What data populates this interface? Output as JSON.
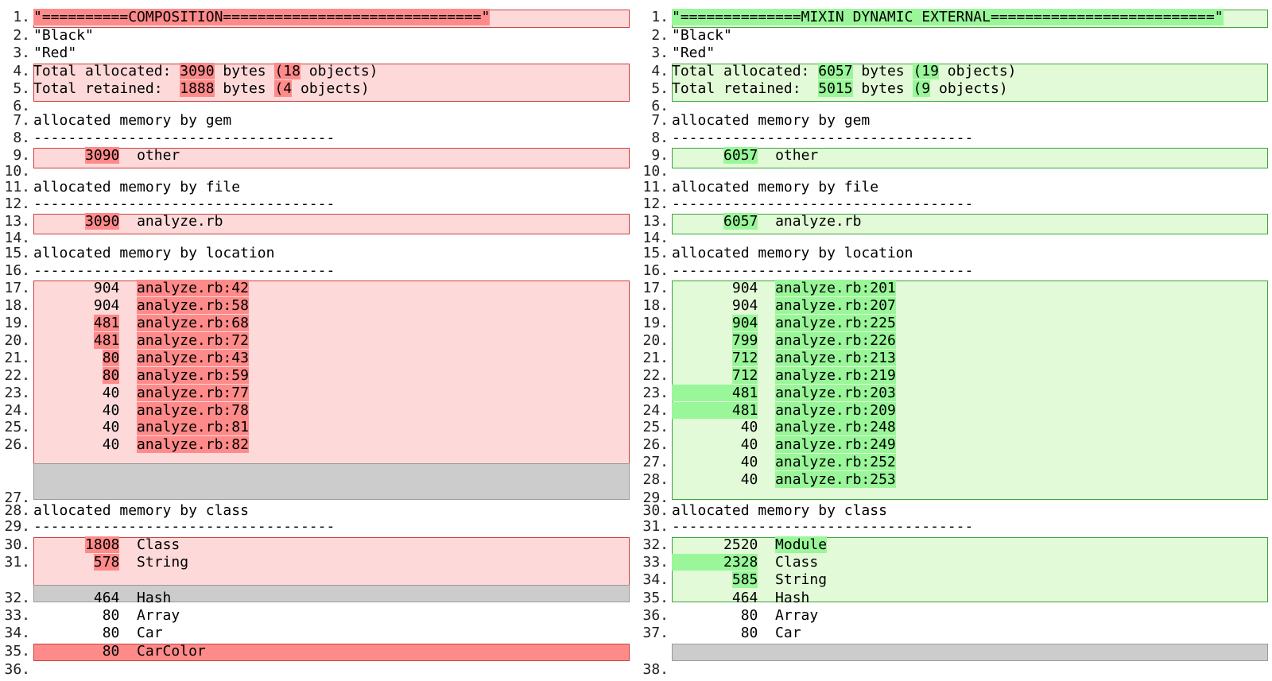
{
  "left": {
    "rows": [
      {
        "ln": "1.",
        "segs": [
          {
            "t": "\"==========COMPOSITION==============================\"",
            "h": 1
          }
        ]
      },
      {
        "ln": "2.",
        "segs": [
          {
            "t": "\"Black\""
          }
        ]
      },
      {
        "ln": "3.",
        "segs": [
          {
            "t": "\"Red\""
          }
        ]
      },
      {
        "ln": "4.",
        "segs": [
          {
            "t": "Total allocated: "
          },
          {
            "t": "3090",
            "h": 1
          },
          {
            "t": " bytes "
          },
          {
            "t": "(18",
            "h": 1
          },
          {
            "t": " objects)"
          }
        ]
      },
      {
        "ln": "5.",
        "segs": [
          {
            "t": "Total retained:  "
          },
          {
            "t": "1888",
            "h": 1
          },
          {
            "t": " bytes "
          },
          {
            "t": "(4",
            "h": 1
          },
          {
            "t": " objects)"
          }
        ]
      },
      {
        "ln": "6.",
        "segs": [
          {
            "t": ""
          }
        ]
      },
      {
        "ln": "7.",
        "segs": [
          {
            "t": "allocated memory by gem"
          }
        ]
      },
      {
        "ln": "8.",
        "segs": [
          {
            "t": "-----------------------------------"
          }
        ]
      },
      {
        "ln": "9.",
        "segs": [
          {
            "t": "      "
          },
          {
            "t": "3090",
            "h": 1
          },
          {
            "t": "  other"
          }
        ]
      },
      {
        "ln": "10.",
        "segs": [
          {
            "t": ""
          }
        ]
      },
      {
        "ln": "11.",
        "segs": [
          {
            "t": "allocated memory by file"
          }
        ]
      },
      {
        "ln": "12.",
        "segs": [
          {
            "t": "-----------------------------------"
          }
        ]
      },
      {
        "ln": "13.",
        "segs": [
          {
            "t": "      "
          },
          {
            "t": "3090",
            "h": 1
          },
          {
            "t": "  analyze.rb"
          }
        ]
      },
      {
        "ln": "14.",
        "segs": [
          {
            "t": ""
          }
        ]
      },
      {
        "ln": "15.",
        "segs": [
          {
            "t": "allocated memory by location"
          }
        ]
      },
      {
        "ln": "16.",
        "segs": [
          {
            "t": "-----------------------------------"
          }
        ]
      },
      {
        "ln": "17.",
        "segs": [
          {
            "t": "       904  "
          },
          {
            "t": "analyze.rb:42",
            "h": 1
          }
        ]
      },
      {
        "ln": "18.",
        "segs": [
          {
            "t": "       904  "
          },
          {
            "t": "analyze.rb:58",
            "h": 1
          }
        ]
      },
      {
        "ln": "19.",
        "segs": [
          {
            "t": "       "
          },
          {
            "t": "481",
            "h": 1
          },
          {
            "t": "  "
          },
          {
            "t": "analyze.rb:68",
            "h": 1
          }
        ]
      },
      {
        "ln": "20.",
        "segs": [
          {
            "t": "       "
          },
          {
            "t": "481",
            "h": 1
          },
          {
            "t": "  "
          },
          {
            "t": "analyze.rb:72",
            "h": 1
          }
        ]
      },
      {
        "ln": "21.",
        "segs": [
          {
            "t": "        "
          },
          {
            "t": "80",
            "h": 1
          },
          {
            "t": "  "
          },
          {
            "t": "analyze.rb:43",
            "h": 1
          }
        ]
      },
      {
        "ln": "22.",
        "segs": [
          {
            "t": "        "
          },
          {
            "t": "80",
            "h": 1
          },
          {
            "t": "  "
          },
          {
            "t": "analyze.rb:59",
            "h": 1
          }
        ]
      },
      {
        "ln": "23.",
        "segs": [
          {
            "t": "        40  "
          },
          {
            "t": "analyze.rb:77",
            "h": 1
          }
        ]
      },
      {
        "ln": "24.",
        "segs": [
          {
            "t": "        40  "
          },
          {
            "t": "analyze.rb:78",
            "h": 1
          }
        ]
      },
      {
        "ln": "25.",
        "segs": [
          {
            "t": "        40  "
          },
          {
            "t": "analyze.rb:81",
            "h": 1
          }
        ]
      },
      {
        "ln": "26.",
        "segs": [
          {
            "t": "        40  "
          },
          {
            "t": "analyze.rb:82",
            "h": 1
          }
        ]
      },
      {
        "ln": "27.",
        "segs": [
          {
            "t": ""
          }
        ]
      },
      {
        "ln": "28.",
        "segs": [
          {
            "t": "allocated memory by class"
          }
        ]
      },
      {
        "ln": "29.",
        "segs": [
          {
            "t": "-----------------------------------"
          }
        ]
      },
      {
        "ln": "30.",
        "segs": [
          {
            "t": "      "
          },
          {
            "t": "1808",
            "h": 1
          },
          {
            "t": "  Class"
          }
        ]
      },
      {
        "ln": "31.",
        "segs": [
          {
            "t": "       "
          },
          {
            "t": "578",
            "h": 1
          },
          {
            "t": "  String"
          }
        ]
      },
      {
        "ln": "32.",
        "segs": [
          {
            "t": "       464  Hash"
          }
        ]
      },
      {
        "ln": "33.",
        "segs": [
          {
            "t": "        80  Array"
          }
        ]
      },
      {
        "ln": "34.",
        "segs": [
          {
            "t": "        80  Car"
          }
        ]
      },
      {
        "ln": "35.",
        "segs": [
          {
            "t": "        80  CarColor"
          }
        ]
      },
      {
        "ln": "36.",
        "segs": [
          {
            "t": ""
          }
        ]
      }
    ]
  },
  "right": {
    "rows": [
      {
        "ln": "1.",
        "segs": [
          {
            "t": "\"==============MIXIN DYNAMIC EXTERNAL==========================\"",
            "h": 1
          }
        ]
      },
      {
        "ln": "2.",
        "segs": [
          {
            "t": "\"Black\""
          }
        ]
      },
      {
        "ln": "3.",
        "segs": [
          {
            "t": "\"Red\""
          }
        ]
      },
      {
        "ln": "4.",
        "segs": [
          {
            "t": "Total allocated: "
          },
          {
            "t": "6057",
            "h": 1
          },
          {
            "t": " bytes "
          },
          {
            "t": "(19",
            "h": 1
          },
          {
            "t": " objects)"
          }
        ]
      },
      {
        "ln": "5.",
        "segs": [
          {
            "t": "Total retained:  "
          },
          {
            "t": "5015",
            "h": 1
          },
          {
            "t": " bytes "
          },
          {
            "t": "(9",
            "h": 1
          },
          {
            "t": " objects)"
          }
        ]
      },
      {
        "ln": "6.",
        "segs": [
          {
            "t": ""
          }
        ]
      },
      {
        "ln": "7.",
        "segs": [
          {
            "t": "allocated memory by gem"
          }
        ]
      },
      {
        "ln": "8.",
        "segs": [
          {
            "t": "-----------------------------------"
          }
        ]
      },
      {
        "ln": "9.",
        "segs": [
          {
            "t": "      "
          },
          {
            "t": "6057",
            "h": 1
          },
          {
            "t": "  other"
          }
        ]
      },
      {
        "ln": "10.",
        "segs": [
          {
            "t": ""
          }
        ]
      },
      {
        "ln": "11.",
        "segs": [
          {
            "t": "allocated memory by file"
          }
        ]
      },
      {
        "ln": "12.",
        "segs": [
          {
            "t": "-----------------------------------"
          }
        ]
      },
      {
        "ln": "13.",
        "segs": [
          {
            "t": "      "
          },
          {
            "t": "6057",
            "h": 1
          },
          {
            "t": "  analyze.rb"
          }
        ]
      },
      {
        "ln": "14.",
        "segs": [
          {
            "t": ""
          }
        ]
      },
      {
        "ln": "15.",
        "segs": [
          {
            "t": "allocated memory by location"
          }
        ]
      },
      {
        "ln": "16.",
        "segs": [
          {
            "t": "-----------------------------------"
          }
        ]
      },
      {
        "ln": "17.",
        "segs": [
          {
            "t": "       904  "
          },
          {
            "t": "analyze.rb:201",
            "h": 1
          }
        ]
      },
      {
        "ln": "18.",
        "segs": [
          {
            "t": "       904  "
          },
          {
            "t": "analyze.rb:207",
            "h": 1
          }
        ]
      },
      {
        "ln": "19.",
        "segs": [
          {
            "t": "       "
          },
          {
            "t": "904",
            "h": 1
          },
          {
            "t": "  "
          },
          {
            "t": "analyze.rb:225",
            "h": 1
          }
        ]
      },
      {
        "ln": "20.",
        "segs": [
          {
            "t": "       "
          },
          {
            "t": "799",
            "h": 1
          },
          {
            "t": "  "
          },
          {
            "t": "analyze.rb:226",
            "h": 1
          }
        ]
      },
      {
        "ln": "21.",
        "segs": [
          {
            "t": "       "
          },
          {
            "t": "712",
            "h": 1
          },
          {
            "t": "  "
          },
          {
            "t": "analyze.rb:213",
            "h": 1
          }
        ]
      },
      {
        "ln": "22.",
        "segs": [
          {
            "t": "       "
          },
          {
            "t": "712",
            "h": 1
          },
          {
            "t": "  "
          },
          {
            "t": "analyze.rb:219",
            "h": 1
          }
        ]
      },
      {
        "ln": "23.",
        "segs": [
          {
            "t": "       481",
            "h": 1
          },
          {
            "t": "  "
          },
          {
            "t": "analyze.rb:203",
            "h": 1
          }
        ]
      },
      {
        "ln": "24.",
        "segs": [
          {
            "t": "       481",
            "h": 1
          },
          {
            "t": "  "
          },
          {
            "t": "analyze.rb:209",
            "h": 1
          }
        ]
      },
      {
        "ln": "25.",
        "segs": [
          {
            "t": "        40  "
          },
          {
            "t": "analyze.rb:248",
            "h": 1
          }
        ]
      },
      {
        "ln": "26.",
        "segs": [
          {
            "t": "        40  "
          },
          {
            "t": "analyze.rb:249",
            "h": 1
          }
        ]
      },
      {
        "ln": "27.",
        "segs": [
          {
            "t": "        40  "
          },
          {
            "t": "analyze.rb:252",
            "h": 1
          }
        ]
      },
      {
        "ln": "28.",
        "segs": [
          {
            "t": "        40  "
          },
          {
            "t": "analyze.rb:253",
            "h": 1
          }
        ]
      },
      {
        "ln": "29.",
        "segs": [
          {
            "t": ""
          }
        ]
      },
      {
        "ln": "30.",
        "segs": [
          {
            "t": "allocated memory by class"
          }
        ]
      },
      {
        "ln": "31.",
        "segs": [
          {
            "t": "-----------------------------------"
          }
        ]
      },
      {
        "ln": "32.",
        "segs": [
          {
            "t": "      2520  "
          },
          {
            "t": "Module",
            "h": 1
          }
        ]
      },
      {
        "ln": "33.",
        "segs": [
          {
            "t": "      2328",
            "h": 1
          },
          {
            "t": "  Class"
          }
        ]
      },
      {
        "ln": "34.",
        "segs": [
          {
            "t": "       "
          },
          {
            "t": "585",
            "h": 1
          },
          {
            "t": "  String"
          }
        ]
      },
      {
        "ln": "35.",
        "segs": [
          {
            "t": "       464  Hash"
          }
        ]
      },
      {
        "ln": "36.",
        "segs": [
          {
            "t": "        80  Array"
          }
        ]
      },
      {
        "ln": "37.",
        "segs": [
          {
            "t": "        80  Car"
          }
        ]
      },
      {
        "ln": "38.",
        "segs": [
          {
            "t": ""
          }
        ]
      }
    ]
  },
  "colors": {
    "deleted_block_bg": "#fdd9d9",
    "deleted_highlight": "#ff8a8a",
    "deleted_border": "#c8413f",
    "inserted_block_bg": "#e2fad7",
    "inserted_highlight": "#99f799",
    "inserted_border": "#3aa53a",
    "gap_bg": "#cccccc"
  }
}
